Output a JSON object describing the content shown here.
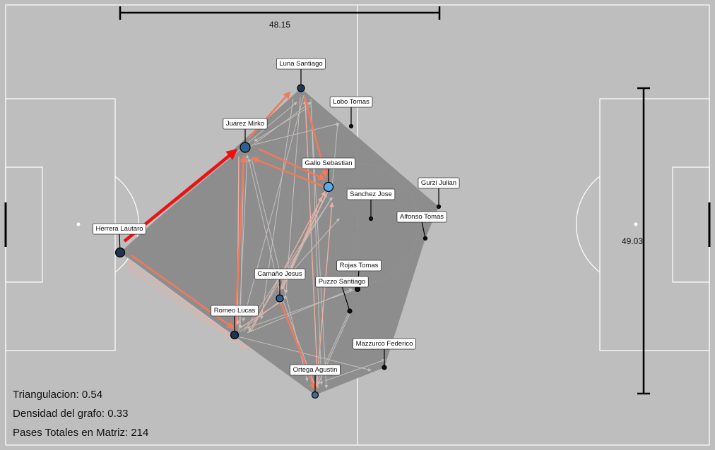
{
  "colors": {
    "background": "#bebebe",
    "pitch_lines": "#ffffff",
    "hull": "#8a8a8a",
    "pass_strong": "#ee1111",
    "pass_medium": "#f07a5c",
    "pass_weak": "#e9b0a2",
    "pass_faint": "#d8d8d8"
  },
  "scale_bars": {
    "width_label": "48.15",
    "height_label": "49.03"
  },
  "stats": {
    "triangulacion_label": "Triangulacion:",
    "triangulacion_value": "0.54",
    "densidad_label": "Densidad del grafo:",
    "densidad_value": "0.33",
    "pases_label": "Pases Totales en Matriz:",
    "pases_value": "214"
  },
  "players": [
    {
      "id": "luna",
      "name": "Luna Santiago",
      "fill": "#1d3a5a",
      "size": 5
    },
    {
      "id": "lobo",
      "name": "Lobo Tomas",
      "fill": "#111111",
      "size": 2.5
    },
    {
      "id": "juarez",
      "name": "Juarez Mirko",
      "fill": "#2f5f8c",
      "size": 7
    },
    {
      "id": "gallo",
      "name": "Gallo Sebastian",
      "fill": "#5aa9ec",
      "size": 6.5
    },
    {
      "id": "gurzi",
      "name": "Gurzi Julian",
      "fill": "#111111",
      "size": 2.5
    },
    {
      "id": "sanchez",
      "name": "Sanchez Jose",
      "fill": "#111111",
      "size": 2.5
    },
    {
      "id": "alfonso",
      "name": "Alfonso Tomas",
      "fill": "#111111",
      "size": 2.5
    },
    {
      "id": "herrera",
      "name": "Herrera Lautaro",
      "fill": "#1d3550",
      "size": 6.5
    },
    {
      "id": "camano",
      "name": "Camaño Jesus",
      "fill": "#2f5f8c",
      "size": 5
    },
    {
      "id": "rojas",
      "name": "Rojas Tomas",
      "fill": "#111111",
      "size": 3.5
    },
    {
      "id": "puzzo",
      "name": "Puzzo Santiago",
      "fill": "#111111",
      "size": 3
    },
    {
      "id": "romeo",
      "name": "Romeo Lucas",
      "fill": "#1d3550",
      "size": 5.5
    },
    {
      "id": "mazzurco",
      "name": "Mazzurco Federico",
      "fill": "#111111",
      "size": 3
    },
    {
      "id": "ortega",
      "name": "Ortega Agustin",
      "fill": "#3e6f99",
      "size": 4.5
    }
  ],
  "passes_major": [
    {
      "from": "herrera",
      "to": "juarez",
      "strength": "strong"
    },
    {
      "from": "juarez",
      "to": "luna",
      "strength": "medium"
    },
    {
      "from": "luna",
      "to": "gallo",
      "strength": "medium"
    },
    {
      "from": "juarez",
      "to": "gallo",
      "strength": "medium"
    },
    {
      "from": "gallo",
      "to": "juarez",
      "strength": "medium"
    },
    {
      "from": "herrera",
      "to": "romeo",
      "strength": "medium"
    },
    {
      "from": "romeo",
      "to": "juarez",
      "strength": "medium"
    },
    {
      "from": "camano",
      "to": "ortega",
      "strength": "medium"
    },
    {
      "from": "romeo",
      "to": "herrera",
      "strength": "weak"
    },
    {
      "from": "ortega",
      "to": "gallo",
      "strength": "weak"
    },
    {
      "from": "camano",
      "to": "gallo",
      "strength": "weak"
    },
    {
      "from": "ortega",
      "to": "luna",
      "strength": "weak"
    }
  ]
}
